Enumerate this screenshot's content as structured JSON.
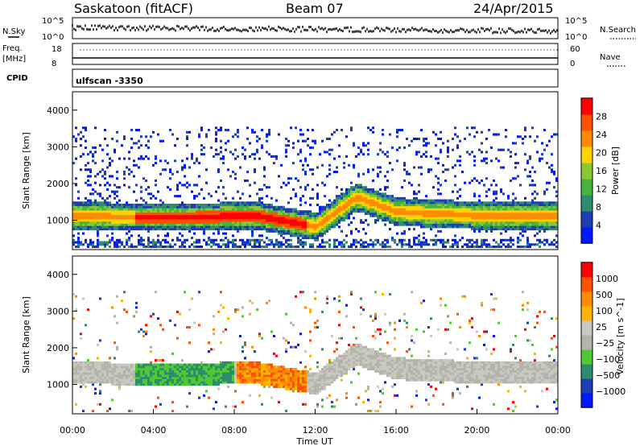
{
  "header": {
    "station": "Saskatoon (fitACF)",
    "beam": "Beam 07",
    "date": "24/Apr/2015"
  },
  "strips": {
    "nsky_label": "N.Sky",
    "nsky_ticks": [
      "10^5",
      "10^0"
    ],
    "nsearch_label": "N.Search",
    "nsearch_ticks": [
      "10^5",
      "10^0"
    ],
    "freq_label": "Freq.",
    "freq_unit": "[MHz]",
    "freq_ticks": [
      "18",
      "8"
    ],
    "nave_label": "Nave",
    "nave_ticks": [
      "60",
      "0"
    ],
    "cpid_label": "CPID",
    "cpid_value": "ulfscan -3350"
  },
  "colors": {
    "power": [
      "#0018ff",
      "#1e3cb4",
      "#2d8c6e",
      "#46b43c",
      "#8cc832",
      "#ffd200",
      "#ff8c00",
      "#ff5000",
      "#ff0000"
    ],
    "velocity": [
      "#ff0000",
      "#ff5000",
      "#ff8c00",
      "#ffb400",
      "#c8c8c0",
      "#b4b4aa",
      "#50c832",
      "#2d8c6e",
      "#1e3cb4",
      "#0018ff"
    ]
  },
  "chart_data": [
    {
      "type": "heatmap",
      "name": "power",
      "ylabel": "Slant Range [km]",
      "yticks": [
        "4000",
        "3000",
        "2000",
        "1000"
      ],
      "ylim": [
        200,
        4500
      ],
      "xlim": [
        0,
        24
      ],
      "colorbar": {
        "label": "Power [dB]",
        "ticks": [
          "28",
          "24",
          "20",
          "16",
          "12",
          "8",
          "4"
        ],
        "range": [
          0,
          32
        ]
      },
      "main_band_km": [
        [
          0,
          1100
        ],
        [
          3,
          1050
        ],
        [
          6,
          1050
        ],
        [
          9,
          1100
        ],
        [
          12,
          800
        ],
        [
          14,
          1600
        ],
        [
          16,
          1200
        ],
        [
          20,
          1100
        ],
        [
          24,
          1100
        ]
      ]
    },
    {
      "type": "heatmap",
      "name": "velocity",
      "ylabel": "Slant Range [km]",
      "yticks": [
        "4000",
        "3000",
        "2000",
        "1000"
      ],
      "ylim": [
        200,
        4500
      ],
      "xlim": [
        0,
        24
      ],
      "xlabel": "Time UT",
      "xticks": [
        "00:00",
        "04:00",
        "08:00",
        "12:00",
        "16:00",
        "20:00",
        "00:00"
      ],
      "colorbar": {
        "label": "Velocity [m s^-1]",
        "ticks": [
          "1000",
          "500",
          "100",
          "25",
          "−25",
          "−100",
          "−500",
          "−1000"
        ],
        "range": [
          -1000,
          1000
        ]
      }
    }
  ]
}
